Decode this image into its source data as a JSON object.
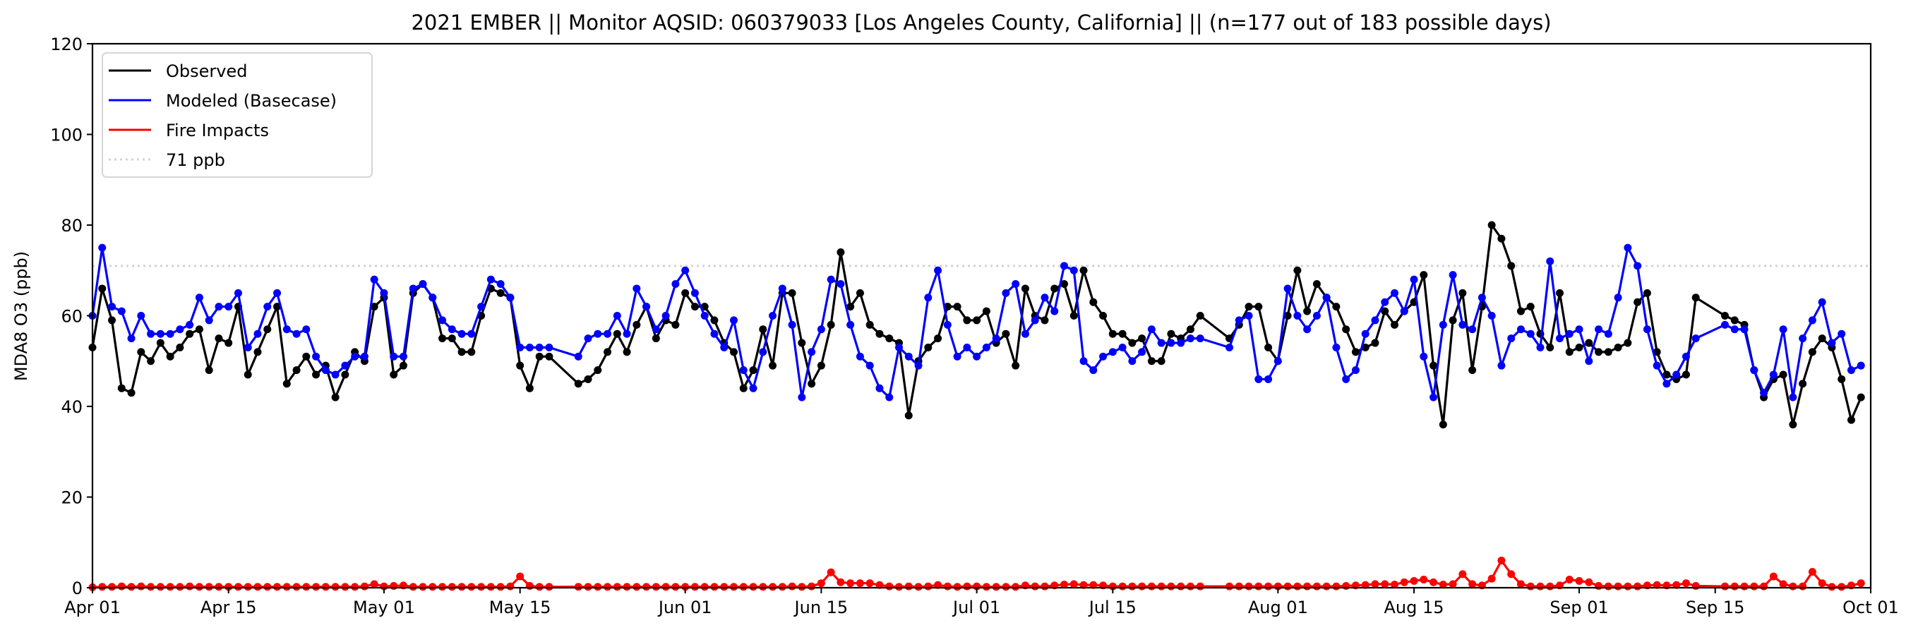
{
  "chart_data": {
    "type": "line",
    "title": "2021 EMBER || Monitor AQSID: 060379033 [Los Angeles County, California] || (n=177 out of 183 possible days)",
    "xlabel": "",
    "ylabel": "MDA8 O3 (ppb)",
    "x_start": "2021-04-01",
    "x_unit": "day index from x_start",
    "xlim": [
      0,
      183
    ],
    "ylim": [
      0,
      120
    ],
    "yticks": [
      0,
      20,
      40,
      60,
      80,
      100,
      120
    ],
    "xticks": [
      {
        "day": 0,
        "label": "Apr 01"
      },
      {
        "day": 14,
        "label": "Apr 15"
      },
      {
        "day": 30,
        "label": "May 01"
      },
      {
        "day": 44,
        "label": "May 15"
      },
      {
        "day": 61,
        "label": "Jun 01"
      },
      {
        "day": 75,
        "label": "Jun 15"
      },
      {
        "day": 91,
        "label": "Jul 01"
      },
      {
        "day": 105,
        "label": "Jul 15"
      },
      {
        "day": 122,
        "label": "Aug 01"
      },
      {
        "day": 136,
        "label": "Aug 15"
      },
      {
        "day": 153,
        "label": "Sep 01"
      },
      {
        "day": 167,
        "label": "Sep 15"
      },
      {
        "day": 183,
        "label": "Oct 01"
      }
    ],
    "grid": false,
    "legend_position": "top-left",
    "threshold": {
      "value": 71,
      "label": "71 ppb",
      "color": "#d3d3d3"
    },
    "series": [
      {
        "name": "Observed",
        "color": "#000000",
        "values": [
          53,
          66,
          59,
          44,
          43,
          52,
          50,
          54,
          51,
          53,
          56,
          57,
          48,
          55,
          54,
          62,
          47,
          52,
          57,
          62,
          45,
          48,
          51,
          47,
          49,
          42,
          47,
          52,
          50,
          62,
          64,
          47,
          49,
          65,
          67,
          64,
          55,
          55,
          52,
          52,
          60,
          66,
          65,
          64,
          49,
          44,
          51,
          51,
          null,
          null,
          45,
          46,
          48,
          52,
          56,
          52,
          58,
          62,
          55,
          59,
          58,
          65,
          62,
          62,
          59,
          54,
          52,
          44,
          48,
          57,
          49,
          65,
          65,
          54,
          45,
          49,
          58,
          74,
          62,
          65,
          58,
          56,
          55,
          54,
          38,
          50,
          53,
          55,
          62,
          62,
          59,
          59,
          61,
          54,
          56,
          49,
          66,
          60,
          59,
          66,
          67,
          60,
          70,
          63,
          60,
          56,
          56,
          54,
          55,
          50,
          50,
          56,
          55,
          57,
          60,
          null,
          null,
          55,
          58,
          62,
          62,
          53,
          50,
          60,
          70,
          61,
          67,
          64,
          62,
          57,
          52,
          53,
          54,
          61,
          58,
          61,
          63,
          69,
          49,
          36,
          59,
          65,
          48,
          62,
          80,
          77,
          71,
          61,
          62,
          56,
          53,
          65,
          52,
          53,
          54,
          52,
          52,
          53,
          54,
          63,
          65,
          52,
          47,
          46,
          47,
          64,
          null,
          null,
          60,
          59,
          58,
          48,
          42,
          46,
          47,
          36,
          45,
          52,
          55,
          53,
          46,
          37,
          42
        ]
      },
      {
        "name": "Modeled (Basecase)",
        "color": "#0000ff",
        "values": [
          60,
          75,
          62,
          61,
          55,
          60,
          56,
          56,
          56,
          57,
          58,
          64,
          59,
          62,
          62,
          65,
          53,
          56,
          62,
          65,
          57,
          56,
          57,
          51,
          48,
          47,
          49,
          51,
          51,
          68,
          65,
          51,
          51,
          66,
          67,
          64,
          59,
          57,
          56,
          56,
          62,
          68,
          67,
          64,
          53,
          53,
          53,
          53,
          null,
          null,
          51,
          55,
          56,
          56,
          60,
          56,
          66,
          62,
          57,
          60,
          67,
          70,
          65,
          60,
          56,
          53,
          59,
          48,
          44,
          52,
          60,
          66,
          58,
          42,
          52,
          57,
          68,
          67,
          58,
          51,
          49,
          44,
          42,
          53,
          51,
          49,
          64,
          70,
          58,
          51,
          53,
          51,
          53,
          55,
          65,
          67,
          56,
          59,
          64,
          61,
          71,
          70,
          50,
          48,
          51,
          52,
          53,
          50,
          52,
          57,
          54,
          54,
          54,
          55,
          55,
          null,
          null,
          53,
          59,
          60,
          46,
          46,
          50,
          66,
          60,
          57,
          60,
          64,
          53,
          46,
          48,
          56,
          59,
          63,
          65,
          61,
          68,
          51,
          42,
          58,
          69,
          58,
          57,
          64,
          60,
          49,
          55,
          57,
          56,
          53,
          72,
          55,
          56,
          57,
          50,
          57,
          56,
          64,
          75,
          71,
          57,
          49,
          45,
          47,
          51,
          55,
          null,
          null,
          58,
          57,
          57,
          48,
          43,
          47,
          57,
          42,
          55,
          59,
          63,
          54,
          56,
          48,
          49
        ]
      },
      {
        "name": "Fire Impacts",
        "color": "#ff0000",
        "values": [
          0.1,
          0.2,
          0.2,
          0.3,
          0.2,
          0.3,
          0.2,
          0.2,
          0.2,
          0.2,
          0.3,
          0.2,
          0.2,
          0.2,
          0.2,
          0.2,
          0.2,
          0.2,
          0.2,
          0.2,
          0.2,
          0.2,
          0.2,
          0.2,
          0.2,
          0.2,
          0.2,
          0.2,
          0.3,
          0.8,
          0.3,
          0.4,
          0.5,
          0.2,
          0.2,
          0.2,
          0.2,
          0.2,
          0.2,
          0.2,
          0.2,
          0.2,
          0.2,
          0.3,
          2.5,
          0.4,
          0.2,
          0.2,
          null,
          null,
          0.2,
          0.2,
          0.2,
          0.2,
          0.2,
          0.2,
          0.2,
          0.2,
          0.2,
          0.2,
          0.2,
          0.2,
          0.2,
          0.2,
          0.2,
          0.2,
          0.2,
          0.2,
          0.2,
          0.2,
          0.2,
          0.2,
          0.3,
          0.2,
          0.3,
          1.0,
          3.4,
          1.2,
          1.0,
          1.0,
          1.0,
          0.6,
          0.3,
          0.2,
          0.3,
          0.2,
          0.3,
          0.6,
          0.3,
          0.2,
          0.3,
          0.3,
          0.2,
          0.2,
          0.2,
          0.2,
          0.5,
          0.3,
          0.3,
          0.5,
          0.7,
          0.8,
          0.6,
          0.6,
          0.5,
          0.3,
          0.3,
          0.3,
          0.3,
          0.3,
          0.3,
          0.3,
          0.3,
          0.3,
          0.3,
          null,
          null,
          0.3,
          0.3,
          0.3,
          0.3,
          0.3,
          0.3,
          0.3,
          0.3,
          0.3,
          0.3,
          0.3,
          0.3,
          0.4,
          0.5,
          0.6,
          0.8,
          0.8,
          0.7,
          1.2,
          1.5,
          1.8,
          1.2,
          0.7,
          0.8,
          3.0,
          0.8,
          0.5,
          2.0,
          6.0,
          3.0,
          0.8,
          0.3,
          0.3,
          0.3,
          0.5,
          1.8,
          1.5,
          1.2,
          0.4,
          0.3,
          0.3,
          0.3,
          0.3,
          0.5,
          0.6,
          0.5,
          0.6,
          1.0,
          0.4,
          null,
          null,
          0.3,
          0.3,
          0.3,
          0.3,
          0.3,
          2.5,
          0.8,
          0.3,
          0.3,
          3.5,
          1.0,
          0.2,
          0.2,
          0.5,
          1.0
        ]
      }
    ]
  }
}
